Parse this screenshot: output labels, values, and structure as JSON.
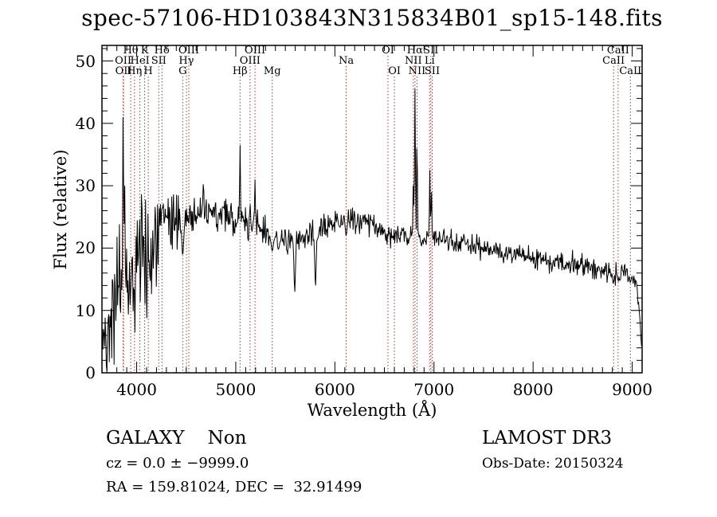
{
  "chart_data": {
    "type": "line",
    "title": "spec-57106-HD103843N315834B01_sp15-148.fits",
    "xlabel": "Wavelength (Å)",
    "ylabel": "Flux (relative)",
    "xlim": [
      3650,
      9100
    ],
    "ylim": [
      0,
      52.5
    ],
    "x_major_ticks": [
      4000,
      5000,
      6000,
      7000,
      8000,
      9000
    ],
    "x_minor_step": 100,
    "y_major_ticks": [
      0,
      10,
      20,
      30,
      40,
      50
    ],
    "y_minor_step": 2,
    "grid": false,
    "spectrum_color": "#000000",
    "line_marker_color": "#a03c3c",
    "spectral_lines": [
      {
        "label": "Hθ",
        "row": 1,
        "wavelength": 3940
      },
      {
        "label": "K",
        "row": 1,
        "wavelength": 4081
      },
      {
        "label": "Hδ",
        "row": 1,
        "wavelength": 4255
      },
      {
        "label": "OIII",
        "row": 1,
        "wavelength": 4526
      },
      {
        "label": "OIII",
        "row": 1,
        "wavelength": 5194
      },
      {
        "label": "OI",
        "row": 1,
        "wavelength": 6536
      },
      {
        "label": "Hα",
        "row": 1,
        "wavelength": 6808
      },
      {
        "label": "SII",
        "row": 1,
        "wavelength": 6968
      },
      {
        "label": "CaII",
        "row": 1,
        "wavelength": 8858
      },
      {
        "label": "OII",
        "row": 2,
        "wavelength": 3864
      },
      {
        "label": "HeI",
        "row": 2,
        "wavelength": 4033
      },
      {
        "label": "SII",
        "row": 2,
        "wavelength": 4223
      },
      {
        "label": "Hγ",
        "row": 2,
        "wavelength": 4502
      },
      {
        "label": "OIII",
        "row": 2,
        "wavelength": 5144
      },
      {
        "label": "Na",
        "row": 2,
        "wavelength": 6114
      },
      {
        "label": "NII",
        "row": 2,
        "wavelength": 6792
      },
      {
        "label": "Li",
        "row": 2,
        "wavelength": 6956
      },
      {
        "label": "CaII",
        "row": 2,
        "wavelength": 8812
      },
      {
        "label": "OII",
        "row": 3,
        "wavelength": 3868
      },
      {
        "label": "Hη",
        "row": 3,
        "wavelength": 3978
      },
      {
        "label": "H",
        "row": 3,
        "wavelength": 4117
      },
      {
        "label": "G",
        "row": 3,
        "wavelength": 4465
      },
      {
        "label": "Hβ",
        "row": 3,
        "wavelength": 5043
      },
      {
        "label": "Mg",
        "row": 3,
        "wavelength": 5368
      },
      {
        "label": "OI",
        "row": 3,
        "wavelength": 6601
      },
      {
        "label": "NII",
        "row": 3,
        "wavelength": 6829
      },
      {
        "label": "SII",
        "row": 3,
        "wavelength": 6982
      },
      {
        "label": "CaII",
        "row": 3,
        "wavelength": 8982
      }
    ],
    "continuum": {
      "wavelength": [
        3650,
        3700,
        3750,
        3800,
        3850,
        3900,
        3950,
        4000,
        4050,
        4100,
        4150,
        4200,
        4250,
        4300,
        4350,
        4400,
        4450,
        4500,
        4600,
        4700,
        4800,
        4900,
        5000,
        5100,
        5200,
        5300,
        5400,
        5500,
        5600,
        5700,
        5800,
        5900,
        6000,
        6100,
        6200,
        6300,
        6400,
        6500,
        6600,
        6700,
        6800,
        6900,
        7000,
        7100,
        7200,
        7300,
        7400,
        7500,
        7600,
        7700,
        7800,
        7900,
        8000,
        8100,
        8200,
        8300,
        8400,
        8500,
        8600,
        8700,
        8800,
        8900,
        9000,
        9040,
        9070,
        9100
      ],
      "flux": [
        4,
        8,
        10,
        12,
        14,
        15,
        16,
        17,
        18,
        18,
        20,
        22,
        23,
        24,
        24.5,
        25,
        24.5,
        25,
        25.5,
        25.5,
        25.5,
        25,
        24.5,
        24,
        23.5,
        22.5,
        21.5,
        21,
        21,
        22,
        22,
        23.5,
        24.5,
        24.5,
        24.8,
        24.5,
        23.5,
        22.5,
        22,
        22,
        22,
        21.5,
        21.5,
        21.5,
        21,
        21,
        20.5,
        20,
        19.5,
        19.5,
        19,
        18.5,
        18.5,
        18,
        18,
        17.5,
        17.5,
        17,
        17,
        16.5,
        16,
        16,
        15.5,
        15,
        10,
        3
      ],
      "noise_sigma": [
        3.5,
        4,
        4.5,
        5,
        5,
        5,
        5,
        5,
        5,
        4.5,
        4,
        3.5,
        3,
        2.5,
        2.2,
        2,
        2,
        1.8,
        1.8,
        1.6,
        1.6,
        1.5,
        1.5,
        1.4,
        1.3,
        1.2,
        1.2,
        1.1,
        1.1,
        1.1,
        1.1,
        1,
        1,
        1,
        1,
        1,
        0.9,
        0.9,
        0.9,
        0.9,
        0.9,
        0.9,
        0.9,
        0.8,
        0.8,
        0.8,
        0.8,
        0.8,
        0.8,
        0.8,
        0.8,
        0.8,
        0.8,
        0.9,
        0.9,
        0.9,
        0.9,
        1,
        1,
        1,
        1,
        1,
        0.9,
        0.8,
        0.5,
        0.3
      ]
    },
    "emission_lines": [
      {
        "wavelength": 3864,
        "peak_flux": 41,
        "sigma": 4
      },
      {
        "wavelength": 3878,
        "peak_flux": 30,
        "sigma": 4
      },
      {
        "wavelength": 5043,
        "peak_flux": 36.5,
        "sigma": 4
      },
      {
        "wavelength": 5144,
        "peak_flux": 27,
        "sigma": 4
      },
      {
        "wavelength": 5194,
        "peak_flux": 31,
        "sigma": 4
      },
      {
        "wavelength": 6792,
        "peak_flux": 30,
        "sigma": 4
      },
      {
        "wavelength": 6808,
        "peak_flux": 45.5,
        "sigma": 4.5
      },
      {
        "wavelength": 6829,
        "peak_flux": 36,
        "sigma": 4
      },
      {
        "wavelength": 6958,
        "peak_flux": 32.5,
        "sigma": 4
      },
      {
        "wavelength": 6974,
        "peak_flux": 29,
        "sigma": 4
      }
    ],
    "absorption_features": [
      {
        "wavelength": 4465,
        "min_flux": 19,
        "sigma": 10
      },
      {
        "wavelength": 5368,
        "min_flux": 19.5,
        "sigma": 10
      },
      {
        "wavelength": 5595,
        "min_flux": 13,
        "sigma": 7
      },
      {
        "wavelength": 5804,
        "min_flux": 14,
        "sigma": 7
      },
      {
        "wavelength": 6114,
        "min_flux": 22,
        "sigma": 8
      },
      {
        "wavelength": 8812,
        "min_flux": 14.5,
        "sigma": 7
      },
      {
        "wavelength": 8858,
        "min_flux": 14.8,
        "sigma": 7
      },
      {
        "wavelength": 8982,
        "min_flux": 14.5,
        "sigma": 7
      }
    ]
  },
  "footer": {
    "left": {
      "class_label": "GALAXY    Non",
      "cz_line": "cz = 0.0 ± −9999.0",
      "radec_line": "RA = 159.81024, DEC =  32.91499"
    },
    "right": {
      "survey": "LAMOST DR3",
      "obs_date_line": "Obs-Date: 20150324"
    }
  }
}
